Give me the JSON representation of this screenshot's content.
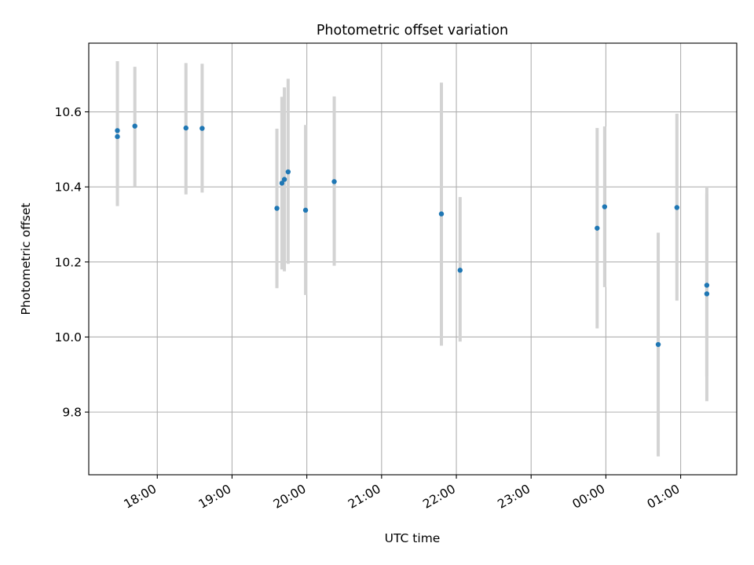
{
  "chart_data": {
    "type": "scatter",
    "title": "Photometric offset variation",
    "xlabel": "UTC time",
    "ylabel": "Photometric offset",
    "x_axis_type": "time",
    "x_domain": [
      "17:05",
      "01:45"
    ],
    "y_domain": [
      9.633,
      10.783
    ],
    "xticks": [
      "18:00",
      "19:00",
      "20:00",
      "21:00",
      "22:00",
      "23:00",
      "00:00",
      "01:00"
    ],
    "yticks": [
      9.8,
      10.0,
      10.2,
      10.4,
      10.6
    ],
    "grid": true,
    "colors": {
      "point": "#1f77b4",
      "errorbar": "#d3d3d3",
      "grid": "#b0b0b0"
    },
    "points": [
      {
        "x": "17:28",
        "y": 10.534,
        "lo": 10.349,
        "hi": 10.735
      },
      {
        "x": "17:28",
        "y": 10.55,
        "lo": 10.36,
        "hi": 10.735
      },
      {
        "x": "17:42",
        "y": 10.562,
        "lo": 10.4,
        "hi": 10.72
      },
      {
        "x": "18:23",
        "y": 10.557,
        "lo": 10.38,
        "hi": 10.73
      },
      {
        "x": "18:36",
        "y": 10.556,
        "lo": 10.385,
        "hi": 10.728
      },
      {
        "x": "19:36",
        "y": 10.343,
        "lo": 10.13,
        "hi": 10.555
      },
      {
        "x": "19:40",
        "y": 10.41,
        "lo": 10.18,
        "hi": 10.64
      },
      {
        "x": "19:42",
        "y": 10.42,
        "lo": 10.175,
        "hi": 10.665
      },
      {
        "x": "19:45",
        "y": 10.44,
        "lo": 10.195,
        "hi": 10.688
      },
      {
        "x": "19:59",
        "y": 10.338,
        "lo": 10.112,
        "hi": 10.565
      },
      {
        "x": "20:22",
        "y": 10.414,
        "lo": 10.19,
        "hi": 10.641
      },
      {
        "x": "21:48",
        "y": 10.328,
        "lo": 9.977,
        "hi": 10.678
      },
      {
        "x": "22:03",
        "y": 10.178,
        "lo": 9.988,
        "hi": 10.373
      },
      {
        "x": "23:53",
        "y": 10.29,
        "lo": 10.023,
        "hi": 10.557
      },
      {
        "x": "23:59",
        "y": 10.347,
        "lo": 10.133,
        "hi": 10.561
      },
      {
        "x": "00:42",
        "y": 9.98,
        "lo": 9.682,
        "hi": 10.278
      },
      {
        "x": "00:57",
        "y": 10.345,
        "lo": 10.097,
        "hi": 10.595
      },
      {
        "x": "01:21",
        "y": 10.115,
        "lo": 9.829,
        "hi": 10.402
      },
      {
        "x": "01:21",
        "y": 10.138,
        "lo": 9.895,
        "hi": 10.381
      }
    ]
  }
}
